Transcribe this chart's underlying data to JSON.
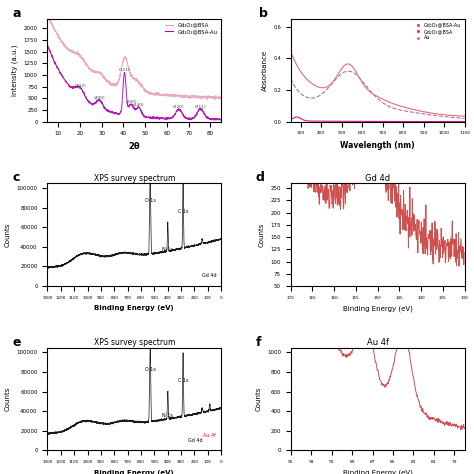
{
  "xrd_xlabel": "2θ",
  "xrd_ylabel": "Intensity (a.u.)",
  "uvvis_xlabel": "Wavelength (nm)",
  "uvvis_ylabel": "Absorbance",
  "xps_xlabel": "Binding Energy (eV)",
  "xps_ylabel": "Counts",
  "gd4d_title": "Gd 4d",
  "auf_title": "Au 4f",
  "xps_title": "XPS survey spectrum",
  "legend_xrd": [
    "Gd₂O₃@BSA",
    "Gd₂O₃@BSA-Au"
  ],
  "legend_uvvis": [
    "Gd₂O₃@BSA-Au",
    "Gd₂O₃@BSA",
    "Au"
  ],
  "xrd_color1": "#e8a0b8",
  "xrd_color2": "#b000b0",
  "uvvis_color1": "#9050a0",
  "uvvis_color2": "#d01880",
  "uvvis_color3": "#e07070",
  "xps_color": "#1a1a1a",
  "gd4d_color": "#d05050",
  "auf_color": "#d05050",
  "background": "#ffffff",
  "label_fontsize": 7,
  "tick_fontsize": 4,
  "panel_label_fontsize": 9
}
